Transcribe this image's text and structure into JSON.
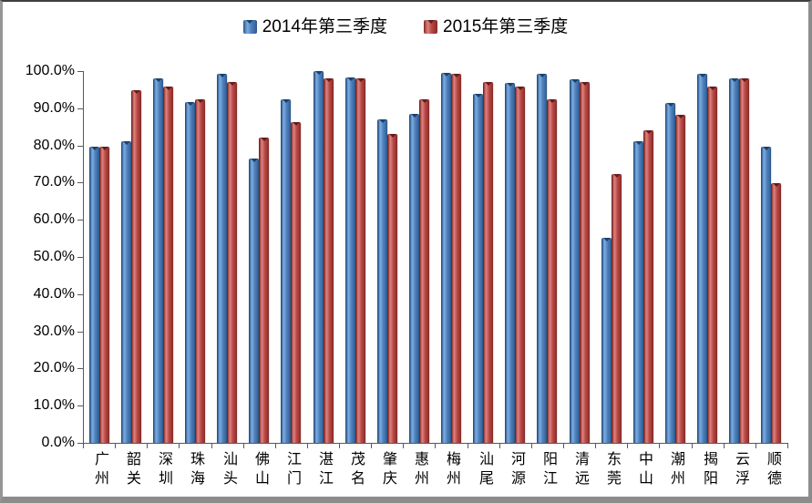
{
  "legend": {
    "items": [
      {
        "label": "2014年第三季度",
        "color": "#4F81BD"
      },
      {
        "label": "2015年第三季度",
        "color": "#C0504D"
      }
    ]
  },
  "chart_data": {
    "type": "bar",
    "title": "",
    "xlabel": "",
    "ylabel": "",
    "categories": [
      "广州",
      "韶关",
      "深圳",
      "珠海",
      "汕头",
      "佛山",
      "江门",
      "湛江",
      "茂名",
      "肇庆",
      "惠州",
      "梅州",
      "汕尾",
      "河源",
      "阳江",
      "清远",
      "东莞",
      "中山",
      "潮州",
      "揭阳",
      "云浮",
      "顺德"
    ],
    "series": [
      {
        "name": "2014年第三季度",
        "color": "#4F81BD",
        "values": [
          79.6,
          81.2,
          98.0,
          91.7,
          99.3,
          76.4,
          92.5,
          99.9,
          98.2,
          87.0,
          88.4,
          99.4,
          93.9,
          96.9,
          99.3,
          97.8,
          55.1,
          81.2,
          91.5,
          99.3,
          98.0,
          79.6
        ]
      },
      {
        "name": "2015年第三季度",
        "color": "#C0504D",
        "values": [
          79.7,
          94.8,
          95.8,
          92.5,
          97.0,
          82.0,
          86.3,
          98.0,
          98.0,
          83.1,
          92.5,
          99.3,
          97.0,
          95.9,
          92.5,
          97.0,
          72.2,
          84.1,
          88.2,
          95.9,
          98.0,
          69.8
        ]
      }
    ],
    "ylim": [
      0,
      100
    ],
    "ytick_step": 10,
    "ytick_labels": [
      "0.0%",
      "10.0%",
      "20.0%",
      "30.0%",
      "40.0%",
      "50.0%",
      "60.0%",
      "70.0%",
      "80.0%",
      "90.0%",
      "100.0%"
    ],
    "grid": false,
    "legend_position": "top-center",
    "axis_color": "#595959"
  }
}
